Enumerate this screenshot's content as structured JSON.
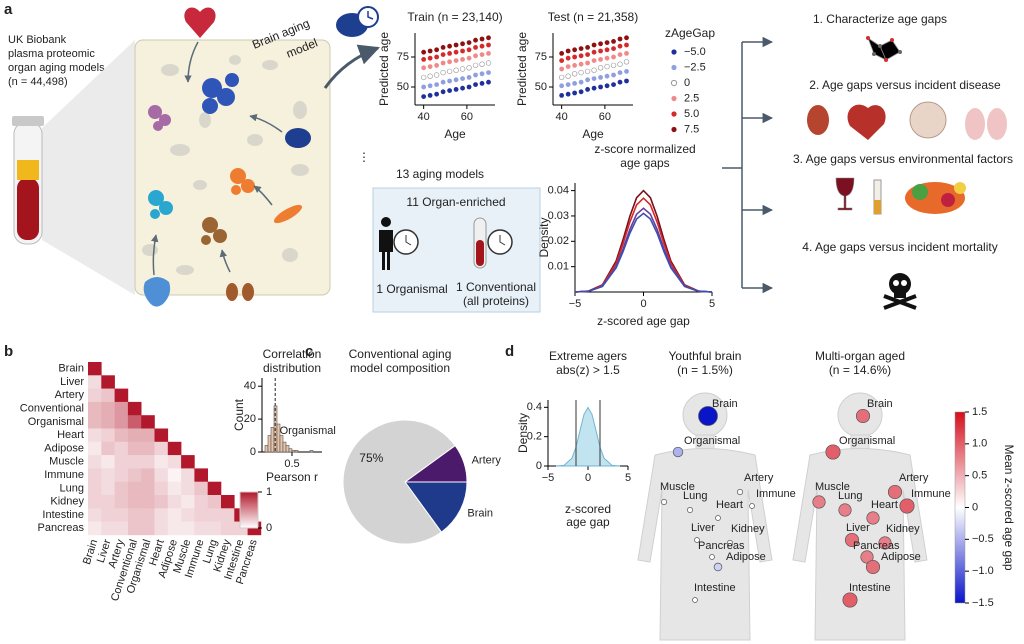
{
  "diagram": {
    "panel_labels": [
      "a",
      "b",
      "c",
      "d"
    ],
    "cohort": [
      "UK Biobank",
      "plasma proteomic",
      "organ aging models",
      "(n = 44,498)"
    ],
    "model_arrow": [
      "Brain aging",
      "model"
    ],
    "ellipsis": "⋮",
    "models_title": "13 aging models",
    "organ_enriched": "11 Organ-enriched",
    "organismal": "1 Organismal",
    "conventional": [
      "1 Conventional",
      "(all proteins)"
    ],
    "outcomes": [
      "1. Characterize age gaps",
      "2. Age gaps versus incident disease",
      "3. Age gaps versus environmental factors",
      "4. Age gaps versus incident mortality"
    ]
  },
  "colorbar": {
    "label": "Mean z-scored age gap",
    "lim": [
      -1.5,
      1.5
    ],
    "colors": [
      "#0a14c8",
      "#ffffff",
      "#d40f1f"
    ],
    "ticks": [
      1.5,
      {
        "value": 1,
        "label": "1.0"
      },
      0.5,
      0,
      {
        "value": -0.5,
        "label": "−0.5"
      },
      {
        "value": -1,
        "label": "−1.0"
      },
      {
        "value": -1.5,
        "label": "−1.5"
      }
    ]
  },
  "chart_data": [
    {
      "type": "scatter",
      "title": "Train (n = 23,140)",
      "xlabel": "Age",
      "ylabel": "Predicted age",
      "xlim": [
        36,
        73
      ],
      "ylim": [
        35,
        95
      ],
      "xticks": [
        40,
        60
      ],
      "yticks": [
        50,
        75
      ],
      "legend_title": "zAgeGap",
      "x": [
        40,
        43,
        46,
        49,
        52,
        55,
        58,
        61,
        64,
        67,
        70
      ],
      "series": [
        {
          "name": "−5.0",
          "color": "#1f2f9e",
          "values": [
            42,
            43,
            44,
            46,
            47,
            48,
            49,
            50,
            52,
            53,
            54
          ]
        },
        {
          "name": "−2.5",
          "color": "#8f9fe0",
          "values": [
            50,
            51,
            52,
            54,
            55,
            56,
            57,
            58,
            60,
            61,
            62
          ]
        },
        {
          "name": "0",
          "color": "#ffffff",
          "values": [
            58,
            59,
            60,
            62,
            63,
            64,
            65,
            66,
            68,
            69,
            70
          ]
        },
        {
          "name": "2.5",
          "color": "#f08a8a",
          "values": [
            66,
            67,
            68,
            70,
            71,
            72,
            73,
            74,
            76,
            77,
            78
          ]
        },
        {
          "name": "5.0",
          "color": "#d42a2a",
          "values": [
            73,
            74,
            75,
            77,
            78,
            79,
            80,
            81,
            83,
            84,
            85
          ]
        },
        {
          "name": "7.5",
          "color": "#8e1010",
          "values": [
            79,
            80,
            81,
            83,
            84,
            85,
            86,
            87,
            89,
            90,
            91
          ]
        }
      ]
    },
    {
      "type": "scatter",
      "title": "Test (n = 21,358)",
      "xlabel": "Age",
      "ylabel": "Predicted age",
      "xlim": [
        36,
        73
      ],
      "ylim": [
        35,
        95
      ],
      "xticks": [
        40,
        60
      ],
      "yticks": [
        50,
        75
      ],
      "x": [
        40,
        43,
        46,
        49,
        52,
        55,
        58,
        61,
        64,
        67,
        70
      ],
      "series": [
        {
          "color": "#1f2f9e",
          "values": [
            43,
            44,
            45,
            46,
            48,
            49,
            50,
            51,
            52,
            54,
            55
          ]
        },
        {
          "color": "#8f9fe0",
          "values": [
            51,
            52,
            53,
            54,
            56,
            57,
            58,
            59,
            60,
            62,
            63
          ]
        },
        {
          "color": "#ffffff",
          "values": [
            58,
            59,
            61,
            62,
            63,
            64,
            66,
            67,
            68,
            69,
            71
          ]
        },
        {
          "color": "#f08a8a",
          "values": [
            65,
            67,
            68,
            69,
            70,
            72,
            73,
            74,
            75,
            77,
            78
          ]
        },
        {
          "color": "#d42a2a",
          "values": [
            72,
            74,
            75,
            76,
            77,
            79,
            80,
            81,
            82,
            84,
            85
          ]
        },
        {
          "color": "#8e1010",
          "values": [
            78,
            80,
            81,
            82,
            83,
            85,
            86,
            87,
            88,
            90,
            91
          ]
        }
      ]
    },
    {
      "type": "line",
      "title": [
        "z-score normalized",
        "age gaps"
      ],
      "xlabel": "z-scored age gap",
      "ylabel": "Density",
      "xlim": [
        -5,
        5
      ],
      "ylim": [
        0,
        0.043
      ],
      "xticks": [
        {
          "value": -5,
          "label": "−5"
        },
        0,
        5
      ],
      "yticks": [
        0.01,
        0.02,
        0.03,
        0.04
      ],
      "x": [
        -5,
        -4,
        -3,
        -2,
        -1.5,
        -1,
        -0.5,
        0,
        0.5,
        1,
        1.5,
        2,
        3,
        4,
        5
      ],
      "series": [
        {
          "color": "#7a0f1a",
          "values": [
            0,
            0.0004,
            0.0028,
            0.0122,
            0.0206,
            0.0298,
            0.0372,
            0.04,
            0.0372,
            0.0298,
            0.0206,
            0.0122,
            0.0028,
            0.0004,
            0
          ]
        },
        {
          "color": "#d62728",
          "values": [
            0,
            0.0003,
            0.0026,
            0.0113,
            0.019,
            0.0275,
            0.0344,
            0.037,
            0.0344,
            0.0275,
            0.019,
            0.0113,
            0.0026,
            0.0003,
            0
          ]
        },
        {
          "color": "#6a3d9a",
          "values": [
            0,
            0.0003,
            0.0023,
            0.0101,
            0.017,
            0.0246,
            0.0307,
            0.033,
            0.0307,
            0.0246,
            0.017,
            0.0101,
            0.0023,
            0.0003,
            0
          ]
        },
        {
          "color": "#3a4fb5",
          "values": [
            0,
            0.0003,
            0.0022,
            0.0095,
            0.0159,
            0.0231,
            0.0288,
            0.031,
            0.0288,
            0.0231,
            0.0159,
            0.0095,
            0.0022,
            0.0003,
            0
          ]
        }
      ]
    },
    {
      "type": "heatmap",
      "categories": [
        "Brain",
        "Liver",
        "Artery",
        "Conventional",
        "Organismal",
        "Heart",
        "Adipose",
        "Muscle",
        "Immune",
        "Lung",
        "Kidney",
        "Intestine",
        "Pancreas"
      ],
      "clim": [
        0,
        1
      ],
      "colors": [
        "#ffffff",
        "#b2182b"
      ],
      "colorbar_ticks": [
        1,
        0
      ],
      "values": [
        [
          1
        ],
        [
          0.15,
          1
        ],
        [
          0.2,
          0.25,
          1
        ],
        [
          0.3,
          0.35,
          0.45,
          1
        ],
        [
          0.3,
          0.35,
          0.45,
          0.7,
          1
        ],
        [
          0.15,
          0.2,
          0.3,
          0.35,
          0.35,
          1
        ],
        [
          0.1,
          0.25,
          0.2,
          0.3,
          0.3,
          0.2,
          1
        ],
        [
          0.15,
          0.1,
          0.2,
          0.2,
          0.2,
          0.1,
          0.15,
          1
        ],
        [
          0.2,
          0.15,
          0.2,
          0.25,
          0.3,
          0.15,
          0.05,
          0.15,
          1
        ],
        [
          0.2,
          0.15,
          0.25,
          0.3,
          0.3,
          0.2,
          0.1,
          0.15,
          0.25,
          1
        ],
        [
          0.2,
          0.2,
          0.25,
          0.3,
          0.3,
          0.25,
          0.15,
          0.1,
          0.2,
          0.25,
          1
        ],
        [
          0.15,
          0.2,
          0.2,
          0.25,
          0.25,
          0.15,
          0.1,
          0.15,
          0.2,
          0.2,
          0.2,
          1
        ],
        [
          0.1,
          0.15,
          0.15,
          0.25,
          0.25,
          0.15,
          0.1,
          0.1,
          0.15,
          0.15,
          0.2,
          0.2,
          1
        ]
      ]
    },
    {
      "type": "histogram",
      "title": [
        "Correlation",
        "distribution"
      ],
      "xlabel": "Pearson r",
      "ylabel": "Count",
      "xlim": [
        0,
        1
      ],
      "ylim": [
        0,
        45
      ],
      "xticks": [
        0.5
      ],
      "yticks": [
        0,
        20,
        40
      ],
      "color": "#e8c4a8",
      "median": 0.22,
      "bins": [
        0.05,
        0.1,
        0.15,
        0.2,
        0.25,
        0.3,
        0.35,
        0.4,
        0.45,
        0.5,
        0.55,
        0.6,
        0.65,
        0.7,
        0.75,
        0.8,
        0.85
      ],
      "counts": [
        4,
        10,
        15,
        28,
        17,
        10,
        6,
        4,
        2,
        1,
        1,
        0,
        0,
        0,
        0,
        1
      ]
    },
    {
      "type": "pie",
      "title": [
        "Conventional aging",
        "model composition"
      ],
      "categories": [
        "Artery",
        "Brain",
        "Organismal"
      ],
      "values": [
        10,
        15,
        75
      ],
      "value_labels": [
        null,
        null,
        "75%"
      ],
      "colors": [
        "#4b1a6b",
        "#1f3a8a",
        "#d3d3d3"
      ]
    },
    {
      "type": "area",
      "title": [
        "Extreme agers",
        "abs(z) > 1.5"
      ],
      "xlabel": [
        "z-scored",
        "age gap"
      ],
      "ylabel": "Density",
      "xlim": [
        -5,
        5
      ],
      "ylim": [
        0,
        0.45
      ],
      "xticks": [
        {
          "value": -5,
          "label": "−5"
        },
        0,
        5
      ],
      "yticks": [
        0,
        0.2,
        0.4
      ],
      "color": "#a8d8ea",
      "thresholds": [
        -1.5,
        1.5
      ],
      "x": [
        -4,
        -3,
        -2,
        -1.5,
        -1,
        -0.5,
        0,
        0.5,
        1,
        1.5,
        2,
        3,
        4
      ],
      "values": [
        0.0001,
        0.0044,
        0.054,
        0.1295,
        0.242,
        0.352,
        0.399,
        0.352,
        0.242,
        0.1295,
        0.054,
        0.0044,
        0.0001
      ]
    },
    {
      "type": "bubble",
      "title": [
        "Youthful brain",
        "(n = 1.5%)"
      ],
      "categories": [
        "Brain",
        "Organismal",
        "Artery",
        "Immune",
        "Muscle",
        "Lung",
        "Heart",
        "Liver",
        "Kidney",
        "Pancreas",
        "Adipose",
        "Intestine"
      ],
      "values": [
        -1.5,
        -0.5,
        0.05,
        0,
        0.05,
        0.02,
        0,
        0,
        0.05,
        0,
        -0.3,
        0
      ]
    },
    {
      "type": "bubble",
      "title": [
        "Multi-organ aged",
        "(n = 14.6%)"
      ],
      "categories": [
        "Brain",
        "Organismal",
        "Artery",
        "Immune",
        "Muscle",
        "Lung",
        "Heart",
        "Liver",
        "Kidney",
        "Pancreas",
        "Adipose",
        "Intestine"
      ],
      "values": [
        0.9,
        1.0,
        0.9,
        1.0,
        0.8,
        0.8,
        0.8,
        0.9,
        0.8,
        0.8,
        0.9,
        1.0
      ]
    }
  ]
}
